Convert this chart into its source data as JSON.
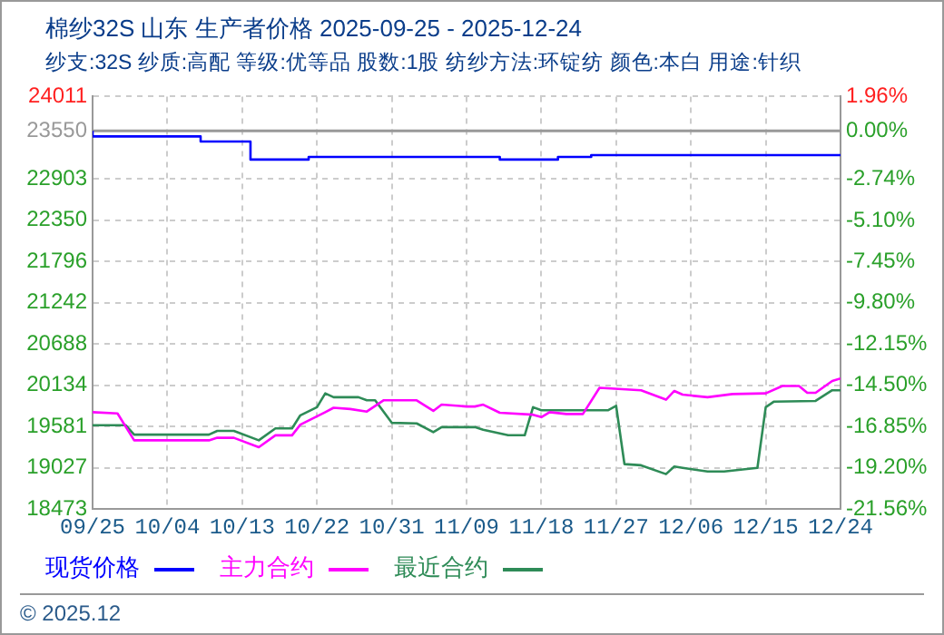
{
  "chart_data": {
    "type": "line",
    "title": "棉纱32S 山东 生产者价格 2025-09-25 - 2025-12-24",
    "subtitle": "纱支:32S 纱质:高配 等级:优等品 股数:1股 纺纱方法:环锭纺 颜色:本白 用途:针织",
    "annotations": [
      "© 2025.12"
    ],
    "xlim": [
      "--09-25",
      "--12-24"
    ],
    "xticks": [
      {
        "value": "--09-25",
        "label": "09/25"
      },
      {
        "value": "--10-04",
        "label": "10/04"
      },
      {
        "value": "--10-13",
        "label": "10/13"
      },
      {
        "value": "--10-22",
        "label": "10/22"
      },
      {
        "value": "--10-31",
        "label": "10/31"
      },
      {
        "value": "--11-09",
        "label": "11/09"
      },
      {
        "value": "--11-18",
        "label": "11/18"
      },
      {
        "value": "--11-27",
        "label": "11/27"
      },
      {
        "value": "--12-06",
        "label": "12/06"
      },
      {
        "value": "--12-15",
        "label": "12/15"
      },
      {
        "value": "--12-24",
        "label": "12/24"
      }
    ],
    "ylim": [
      18473,
      24011
    ],
    "yticks": [
      18473,
      19027,
      19581,
      20134,
      20688,
      21242,
      21796,
      22350,
      22903,
      23550,
      24011
    ],
    "y2lim": [
      -21.56,
      1.96
    ],
    "y2ticks": [
      {
        "value": -21.56,
        "label": "-21.56%"
      },
      {
        "value": -19.2,
        "label": "-19.20%"
      },
      {
        "value": -16.85,
        "label": "-16.85%"
      },
      {
        "value": -14.5,
        "label": "-14.50%"
      },
      {
        "value": -12.15,
        "label": "-12.15%"
      },
      {
        "value": -9.8,
        "label": "-9.80%"
      },
      {
        "value": -7.45,
        "label": "-7.45%"
      },
      {
        "value": -5.1,
        "label": "-5.10%"
      },
      {
        "value": -2.74,
        "label": "-2.74%"
      },
      {
        "value": 0,
        "label": "0.00%"
      },
      {
        "value": 1.96,
        "label": "1.96%"
      }
    ],
    "ref_lines": [
      {
        "axis": "y",
        "value": 23550,
        "color": "#999999"
      }
    ],
    "grid": true,
    "legend": "bottom left",
    "marker": "none",
    "series": [
      {
        "name": "现货价格",
        "type": "step",
        "color": "#0000ff",
        "x": [
          "--09-25",
          "--10-08",
          "--10-14",
          "--10-21",
          "--11-13",
          "--11-20",
          "--11-24",
          "--12-15",
          "--12-24"
        ],
        "values": [
          23550,
          23475,
          23407,
          23165,
          23200,
          23165,
          23200,
          23225,
          23225
        ]
      },
      {
        "name": "主力合约",
        "type": "line",
        "color": "#ff00ff",
        "x": [
          "--09-25",
          "--09-28",
          "--09-30",
          "--10-09",
          "--10-10",
          "--10-12",
          "--10-15",
          "--10-17",
          "--10-19",
          "--10-20",
          "--10-23",
          "--10-24",
          "--10-26",
          "--10-28",
          "--10-30",
          "--11-03",
          "--11-05",
          "--11-06",
          "--11-09",
          "--11-10",
          "--11-11",
          "--11-13",
          "--11-17",
          "--11-18",
          "--11-19",
          "--11-21",
          "--11-23",
          "--11-25",
          "--11-30",
          "--12-03",
          "--12-04",
          "--12-05",
          "--12-08",
          "--12-11",
          "--12-15",
          "--12-17",
          "--12-19",
          "--12-20",
          "--12-21",
          "--12-23",
          "--12-24"
        ],
        "values": [
          19774,
          19757,
          19396,
          19396,
          19430,
          19430,
          19304,
          19463,
          19463,
          19606,
          19774,
          19833,
          19816,
          19782,
          19933,
          19933,
          19791,
          19875,
          19850,
          19850,
          19875,
          19766,
          19740,
          19707,
          19774,
          19749,
          19749,
          20101,
          20068,
          19942,
          20059,
          20009,
          19975,
          20017,
          20026,
          20126,
          20126,
          20034,
          20034,
          20193,
          20227
        ]
      },
      {
        "name": "最近合约",
        "type": "line",
        "color": "#2e8b57",
        "x": [
          "--09-25",
          "--09-29",
          "--09-30",
          "--10-09",
          "--10-10",
          "--10-12",
          "--10-15",
          "--10-17",
          "--10-19",
          "--10-20",
          "--10-22",
          "--10-23",
          "--10-24",
          "--10-27",
          "--10-28",
          "--10-29",
          "--10-31",
          "--11-03",
          "--11-05",
          "--11-06",
          "--11-10",
          "--11-11",
          "--11-14",
          "--11-16",
          "--11-17",
          "--11-18",
          "--11-26",
          "--11-27",
          "--11-28",
          "--11-30",
          "--12-03",
          "--12-04",
          "--12-05",
          "--12-08",
          "--12-10",
          "--12-14",
          "--12-15",
          "--12-16",
          "--12-21",
          "--12-23",
          "--12-24"
        ],
        "values": [
          19598,
          19598,
          19472,
          19472,
          19522,
          19522,
          19396,
          19556,
          19556,
          19732,
          19841,
          20026,
          19975,
          19975,
          19933,
          19933,
          19631,
          19623,
          19505,
          19573,
          19573,
          19539,
          19464,
          19464,
          19841,
          19799,
          19799,
          19858,
          19077,
          19061,
          18943,
          19044,
          19027,
          18977,
          18977,
          19027,
          19841,
          19916,
          19925,
          20068,
          20068
        ]
      }
    ]
  }
}
